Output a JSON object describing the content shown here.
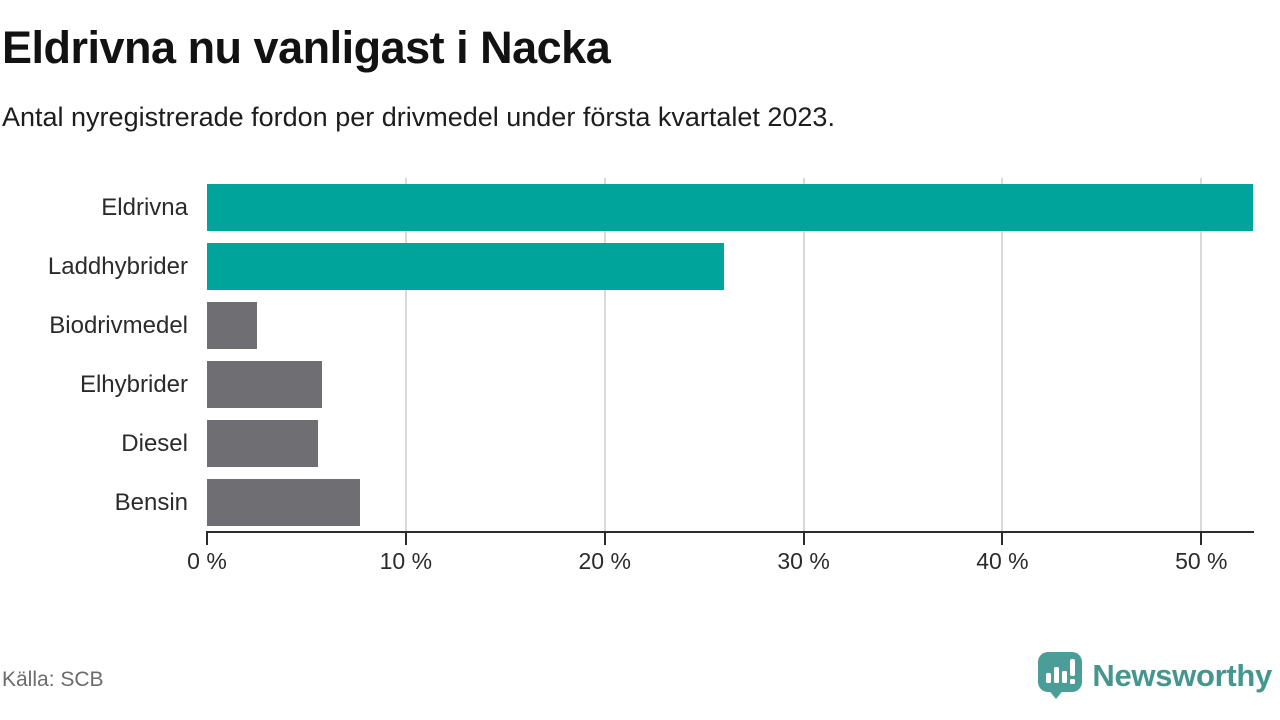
{
  "title": "Eldrivna nu vanligast i Nacka",
  "subtitle": "Antal nyregistrerade fordon per drivmedel under första kvartalet 2023.",
  "source": "Källa: SCB",
  "logo": {
    "text": "Newsworthy"
  },
  "colors": {
    "accent_teal": "#00a49a",
    "bar_gray": "#6e6e73",
    "gridline": "#d9d9d9",
    "axis": "#2b2b2b",
    "logo_teal": "#4a9e97",
    "logo_text": "#45968f"
  },
  "chart_data": {
    "type": "bar",
    "orientation": "horizontal",
    "title": "Eldrivna nu vanligast i Nacka",
    "subtitle": "Antal nyregistrerade fordon per drivmedel under första kvartalet 2023.",
    "categories": [
      "Eldrivna",
      "Laddhybrider",
      "Biodrivmedel",
      "Elhybrider",
      "Diesel",
      "Bensin"
    ],
    "values": [
      52.6,
      26.0,
      2.5,
      5.8,
      5.6,
      7.7
    ],
    "unit": "%",
    "bar_colors": [
      "#00a49a",
      "#00a49a",
      "#6e6e73",
      "#6e6e73",
      "#6e6e73",
      "#6e6e73"
    ],
    "xlim": [
      0,
      52.6
    ],
    "x_ticks": [
      0,
      10,
      20,
      30,
      40,
      50
    ],
    "x_tick_labels": [
      "0 %",
      "10 %",
      "20 %",
      "30 %",
      "40 %",
      "50 %"
    ],
    "grid": true,
    "legend": false,
    "source": "Källa: SCB"
  }
}
